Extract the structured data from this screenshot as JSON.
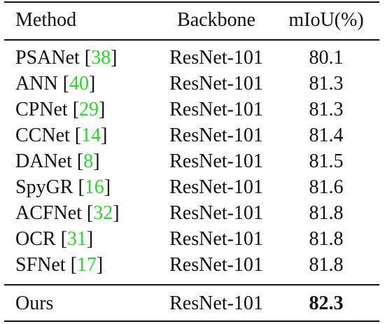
{
  "table": {
    "headers": {
      "method": "Method",
      "backbone": "Backbone",
      "miou": "mIoU(%)"
    },
    "rows": [
      {
        "method": "PSANet",
        "ref": "38",
        "backbone": "ResNet-101",
        "miou": "80.1"
      },
      {
        "method": "ANN",
        "ref": "40",
        "backbone": "ResNet-101",
        "miou": "81.3"
      },
      {
        "method": "CPNet",
        "ref": "29",
        "backbone": "ResNet-101",
        "miou": "81.3"
      },
      {
        "method": "CCNet",
        "ref": "14",
        "backbone": "ResNet-101",
        "miou": "81.4"
      },
      {
        "method": "DANet",
        "ref": "8",
        "backbone": "ResNet-101",
        "miou": "81.5"
      },
      {
        "method": "SpyGR",
        "ref": "16",
        "backbone": "ResNet-101",
        "miou": "81.6"
      },
      {
        "method": "ACFNet",
        "ref": "32",
        "backbone": "ResNet-101",
        "miou": "81.8"
      },
      {
        "method": "OCR",
        "ref": "31",
        "backbone": "ResNet-101",
        "miou": "81.8"
      },
      {
        "method": "SFNet",
        "ref": "17",
        "backbone": "ResNet-101",
        "miou": "81.8"
      }
    ],
    "ours": {
      "method": "Ours",
      "backbone": "ResNet-101",
      "miou": "82.3"
    }
  },
  "colors": {
    "citation": "#22dd22",
    "text": "#111111"
  }
}
